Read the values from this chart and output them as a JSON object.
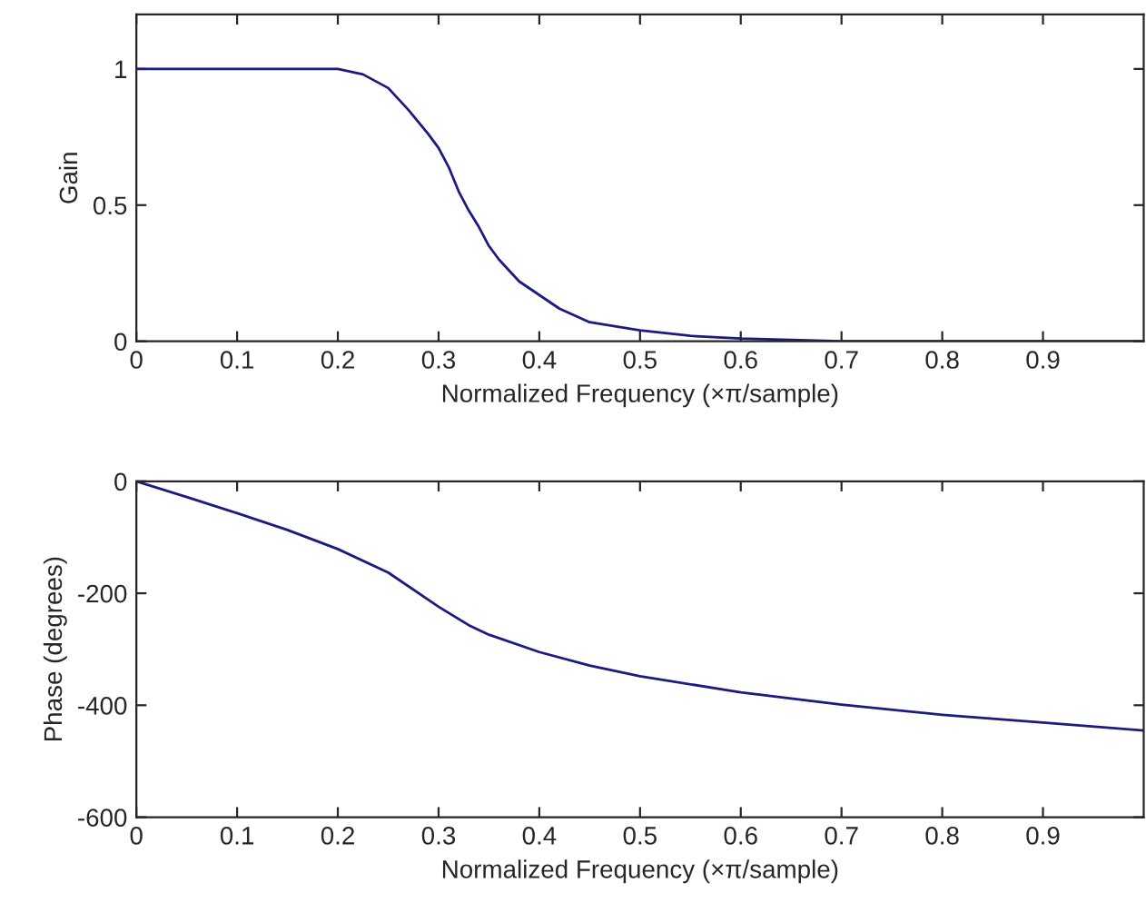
{
  "chart_data": [
    {
      "type": "line",
      "xlabel": "Normalized Frequency (×π/sample)",
      "ylabel": "Gain",
      "xlim": [
        0,
        1
      ],
      "ylim": [
        0,
        1.2
      ],
      "xticks": [
        0,
        0.1,
        0.2,
        0.3,
        0.4,
        0.5,
        0.6,
        0.7,
        0.8,
        0.9
      ],
      "yticks": [
        0,
        0.5,
        1
      ],
      "grid": false,
      "legend": false,
      "series": [
        {
          "color": "#1c1c80",
          "x": [
            0,
            0.1,
            0.2,
            0.225,
            0.25,
            0.27,
            0.29,
            0.3,
            0.31,
            0.32,
            0.33,
            0.34,
            0.35,
            0.36,
            0.38,
            0.4,
            0.42,
            0.45,
            0.5,
            0.55,
            0.6,
            0.7,
            0.8,
            0.9,
            1.0
          ],
          "values": [
            1,
            1,
            1,
            0.98,
            0.93,
            0.85,
            0.76,
            0.71,
            0.64,
            0.55,
            0.48,
            0.42,
            0.35,
            0.3,
            0.22,
            0.17,
            0.12,
            0.07,
            0.04,
            0.02,
            0.01,
            0,
            0,
            0,
            0
          ]
        }
      ]
    },
    {
      "type": "line",
      "xlabel": "Normalized Frequency (×π/sample)",
      "ylabel": "Phase (degrees)",
      "xlim": [
        0,
        1
      ],
      "ylim": [
        -600,
        0
      ],
      "xticks": [
        0,
        0.1,
        0.2,
        0.3,
        0.4,
        0.5,
        0.6,
        0.7,
        0.8,
        0.9
      ],
      "yticks": [
        -600,
        -400,
        -200,
        0
      ],
      "grid": false,
      "legend": false,
      "series": [
        {
          "color": "#1c1c80",
          "x": [
            0,
            0.05,
            0.1,
            0.15,
            0.2,
            0.25,
            0.3,
            0.33,
            0.35,
            0.4,
            0.45,
            0.5,
            0.6,
            0.7,
            0.8,
            0.9,
            1.0
          ],
          "values": [
            0,
            -28,
            -57,
            -87,
            -121,
            -163,
            -224,
            -257,
            -274,
            -305,
            -329,
            -348,
            -377,
            -399,
            -417,
            -431,
            -445
          ]
        }
      ]
    }
  ]
}
